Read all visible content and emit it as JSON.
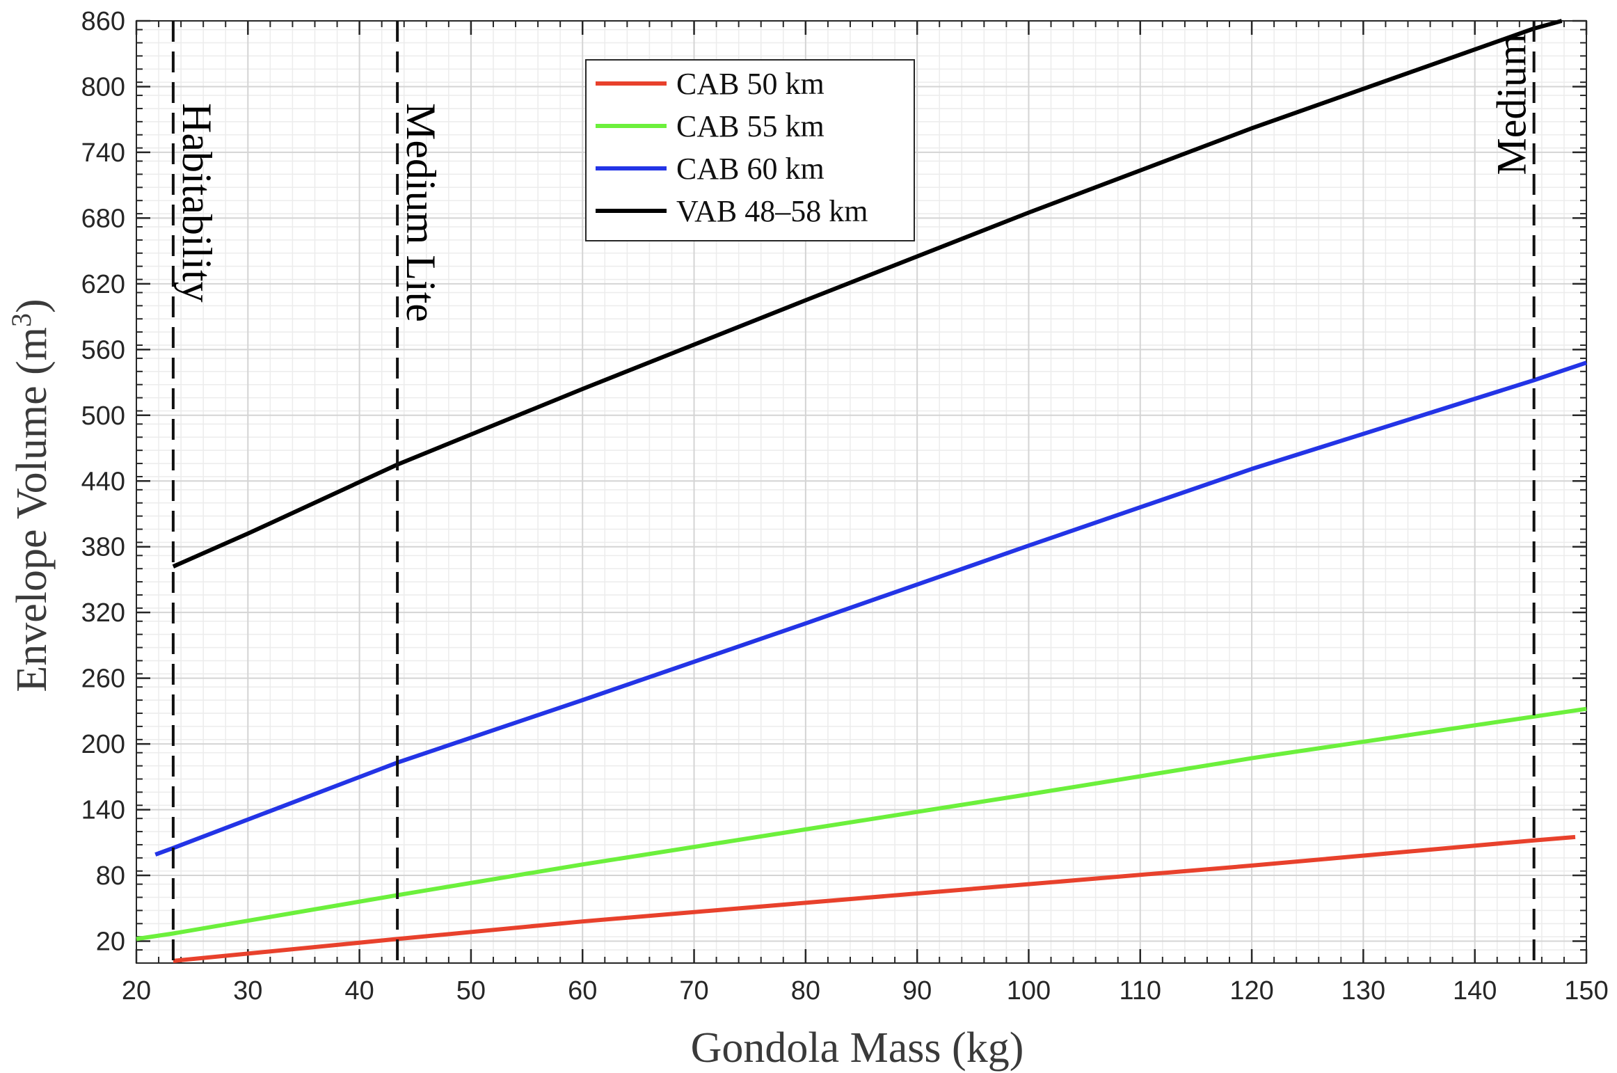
{
  "chart_data": {
    "type": "line",
    "xlabel": "Gondola Mass (kg)",
    "ylabel_main": "Envelope Volume (m",
    "ylabel_sup": "3",
    "ylabel_close": ")",
    "xlim": [
      20,
      150
    ],
    "ylim": [
      0,
      860
    ],
    "x_ticks": [
      20,
      30,
      40,
      50,
      60,
      70,
      80,
      90,
      100,
      110,
      120,
      130,
      140,
      150
    ],
    "y_ticks": [
      20,
      80,
      140,
      200,
      260,
      320,
      380,
      440,
      500,
      560,
      620,
      680,
      740,
      800,
      860
    ],
    "x_minor_step": 2,
    "y_minor_step": 12,
    "grid": true,
    "legend_position": "top-center",
    "series": [
      {
        "name": "CAB 50 km",
        "color": "#e8412c",
        "x": [
          23.3,
          43.4,
          60,
          80,
          100,
          120,
          145.3,
          149
        ],
        "y": [
          2,
          22,
          38,
          55,
          72,
          89,
          112,
          115
        ]
      },
      {
        "name": "CAB 55 km",
        "color": "#6cf03c",
        "x": [
          20,
          23.3,
          43.4,
          60,
          80,
          100,
          120,
          145.3,
          150
        ],
        "y": [
          22,
          27,
          62,
          90,
          122,
          154,
          187,
          225,
          232
        ]
      },
      {
        "name": "CAB 60 km",
        "color": "#2334e6",
        "x": [
          21.7,
          23.3,
          43.4,
          60,
          80,
          100,
          120,
          145.3,
          150
        ],
        "y": [
          99,
          105,
          183,
          240,
          310,
          381,
          451,
          532,
          548
        ]
      },
      {
        "name": "VAB 48–58 km",
        "color": "#000000",
        "x": [
          23.3,
          30,
          43.4,
          60,
          80,
          100,
          120,
          145.3,
          147.8
        ],
        "y": [
          362,
          392,
          455,
          524,
          605,
          685,
          762,
          853,
          860
        ]
      }
    ],
    "vertical_markers": [
      {
        "x": 23.3,
        "label": "Habitability"
      },
      {
        "x": 43.4,
        "label": "Medium Lite"
      },
      {
        "x": 145.3,
        "label": "Medium"
      }
    ]
  }
}
